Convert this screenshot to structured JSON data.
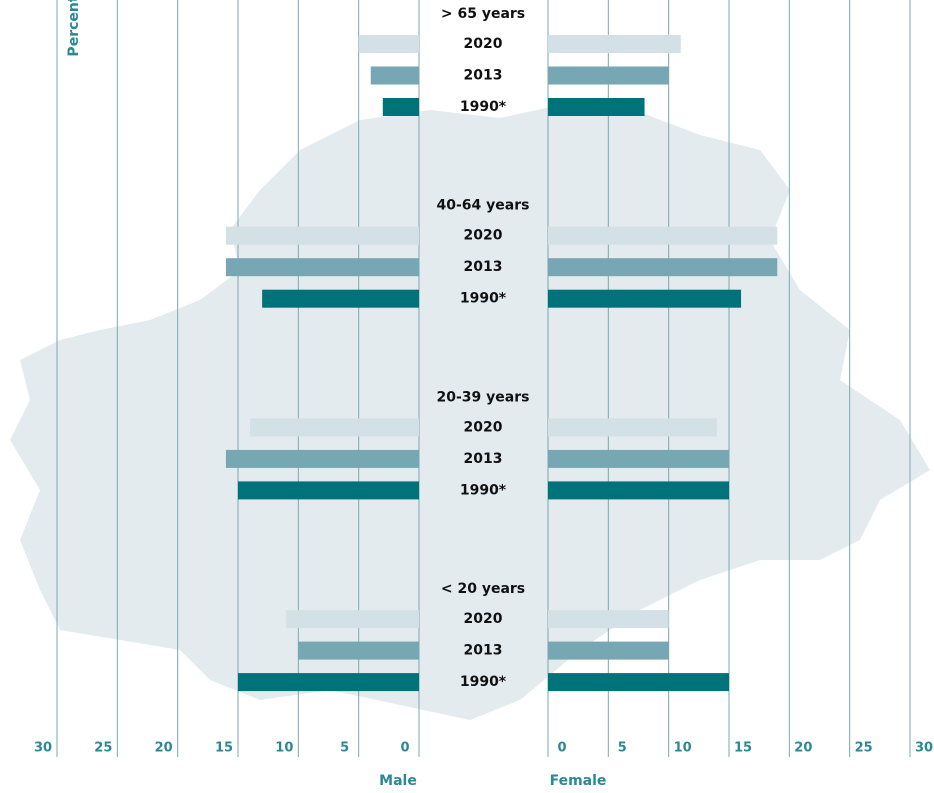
{
  "chart_data": {
    "type": "pyramid",
    "y_label": "Percent",
    "left_label": "Male",
    "right_label": "Female",
    "categories": [
      "> 65 years",
      "40-64 years",
      "20-39 years",
      "< 20 years"
    ],
    "series": [
      {
        "name": "2020",
        "color": "#d3e0e5",
        "male": [
          5,
          16,
          14,
          11
        ],
        "female": [
          11,
          19,
          14,
          10
        ]
      },
      {
        "name": "2013",
        "color": "#76a7b2",
        "male": [
          4,
          16,
          16,
          10
        ],
        "female": [
          10,
          19,
          15,
          10
        ]
      },
      {
        "name": "1990*",
        "color": "#00737a",
        "male": [
          3,
          13,
          15,
          15
        ],
        "female": [
          8,
          16,
          15,
          15
        ]
      }
    ],
    "xlim": [
      0,
      30
    ],
    "xticks": [
      0,
      5,
      10,
      15,
      20,
      25,
      30
    ],
    "grid": true
  }
}
